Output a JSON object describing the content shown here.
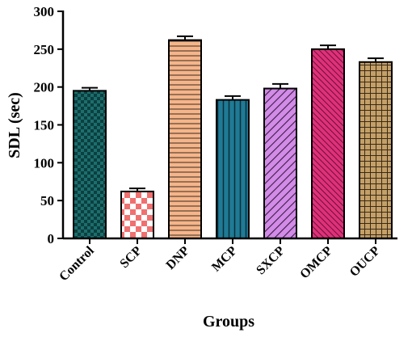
{
  "chart_data": {
    "type": "bar",
    "title": "",
    "xlabel": "Groups",
    "ylabel": "SDL (sec)",
    "ylim": [
      0,
      300
    ],
    "yticks": [
      0,
      50,
      100,
      150,
      200,
      250,
      300
    ],
    "categories": [
      "Control",
      "SCP",
      "DNP",
      "MCP",
      "SXCP",
      "OMCP",
      "OUCP"
    ],
    "values": [
      195,
      62,
      262,
      183,
      198,
      250,
      233
    ],
    "errors": [
      4,
      4,
      5,
      5,
      6,
      5,
      5
    ],
    "colors": [
      "#1c6e6e",
      "#f07070",
      "#f5b58a",
      "#1f7a95",
      "#d28be6",
      "#e0307a",
      "#c4a068"
    ],
    "patterns": [
      "checker",
      "checker-large",
      "horizontal",
      "vertical",
      "diagonal",
      "diagonal-dense",
      "grid"
    ],
    "grid": false,
    "legend": "none"
  }
}
